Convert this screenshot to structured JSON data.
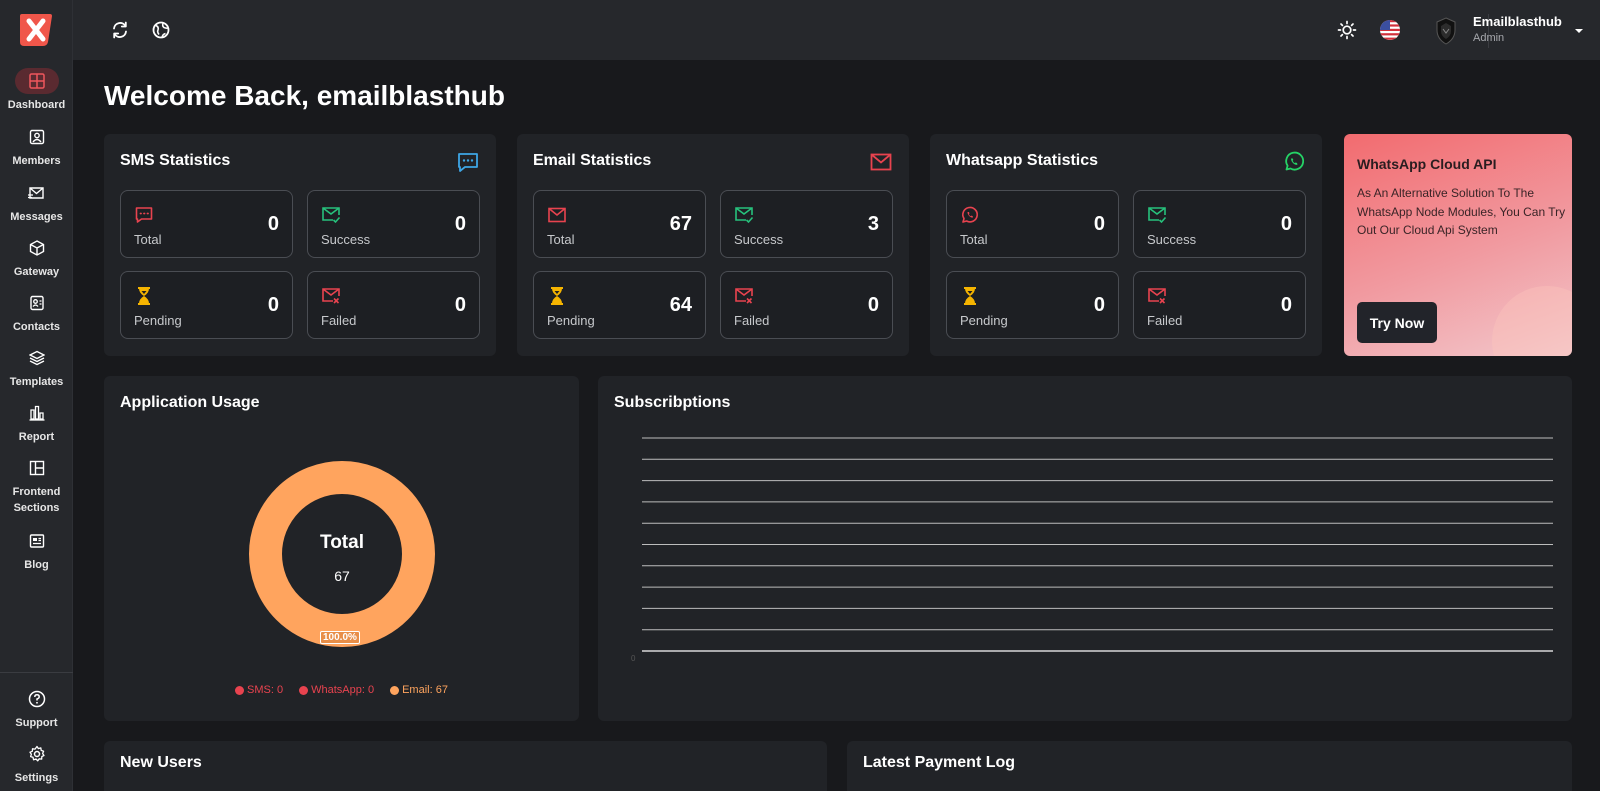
{
  "sidebar": {
    "items": [
      {
        "label": "Dashboard",
        "icon": "dashboard-icon"
      },
      {
        "label": "Members",
        "icon": "members-icon"
      },
      {
        "label": "Messages",
        "icon": "messages-icon"
      },
      {
        "label": "Gateway",
        "icon": "gateway-icon"
      },
      {
        "label": "Contacts",
        "icon": "contacts-icon"
      },
      {
        "label": "Templates",
        "icon": "templates-icon"
      },
      {
        "label": "Report",
        "icon": "report-icon"
      },
      {
        "label": "Frontend",
        "label2": "Sections",
        "icon": "frontend-sections-icon"
      },
      {
        "label": "Blog",
        "icon": "blog-icon"
      }
    ],
    "footer": [
      {
        "label": "Support",
        "icon": "support-icon"
      },
      {
        "label": "Settings",
        "icon": "settings-icon"
      }
    ]
  },
  "topbar": {
    "user_name": "Emailblasthub",
    "user_role": "Admin"
  },
  "welcome": "Welcome Back, emailblasthub",
  "stats": {
    "sms": {
      "title": "SMS Statistics",
      "total": {
        "label": "Total",
        "value": "0"
      },
      "success": {
        "label": "Success",
        "value": "0"
      },
      "pending": {
        "label": "Pending",
        "value": "0"
      },
      "failed": {
        "label": "Failed",
        "value": "0"
      }
    },
    "email": {
      "title": "Email Statistics",
      "total": {
        "label": "Total",
        "value": "67"
      },
      "success": {
        "label": "Success",
        "value": "3"
      },
      "pending": {
        "label": "Pending",
        "value": "64"
      },
      "failed": {
        "label": "Failed",
        "value": "0"
      }
    },
    "whatsapp": {
      "title": "Whatsapp Statistics",
      "total": {
        "label": "Total",
        "value": "0"
      },
      "success": {
        "label": "Success",
        "value": "0"
      },
      "pending": {
        "label": "Pending",
        "value": "0"
      },
      "failed": {
        "label": "Failed",
        "value": "0"
      }
    }
  },
  "promo": {
    "title": "WhatsApp Cloud API",
    "text": "As An Alternative Solution To The WhatsApp Node Modules, You Can Try Out Our Cloud Api System",
    "button": "Try Now"
  },
  "usage": {
    "title": "Application Usage",
    "center_label": "Total",
    "center_value": "67",
    "pct_label": "100.0%",
    "legend": [
      {
        "label": "SMS: 0",
        "color": "#e8434f"
      },
      {
        "label": "WhatsApp: 0",
        "color": "#e8434f"
      },
      {
        "label": "Email: 67",
        "color": "#ffa45e"
      }
    ]
  },
  "subscriptions": {
    "title": "Subscribptions",
    "zero_label": "0"
  },
  "bottom": {
    "new_users": "New Users",
    "payment_log": "Latest Payment Log"
  },
  "colors": {
    "accent": "#e8434f",
    "success": "#27c17c",
    "pending": "#f5b400",
    "sms_icon": "#3ea6e6",
    "whatsapp": "#25d366",
    "donut": "#ffa45e"
  },
  "chart_data": {
    "type": "pie",
    "title": "",
    "categories": [
      "SMS",
      "WhatsApp",
      "Email"
    ],
    "values": [
      0,
      0,
      67
    ],
    "total": 67
  }
}
